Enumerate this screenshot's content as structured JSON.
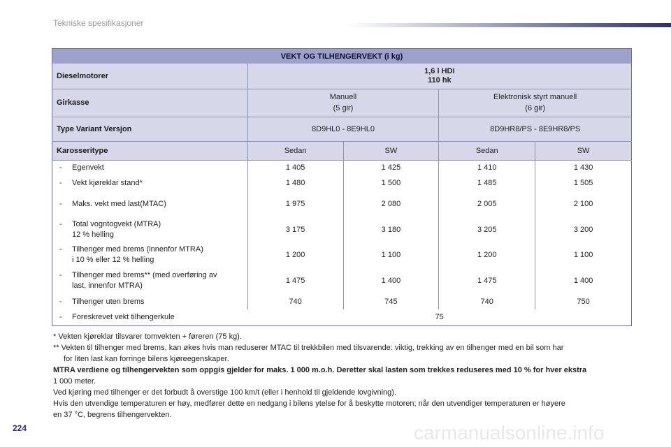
{
  "header": {
    "title": "Tekniske spesifikasjoner"
  },
  "table": {
    "title": "VEKT OG TILHENGERVEKT (i kg)",
    "engine": {
      "label": "Dieselmotorer",
      "line1": "1,6 l HDi",
      "line2": "110 hk"
    },
    "gearbox": {
      "label": "Girkasse",
      "col1_line1": "Manuell",
      "col1_line2": "(5 gir)",
      "col2_line1": "Elektronisk styrt manuell",
      "col2_line2": "(6 gir)"
    },
    "version": {
      "label": "Type Variant Versjon",
      "col1": "8D9HL0 - 8E9HL0",
      "col2": "8D9HR8/PS - 8E9HR8/PS"
    },
    "body": {
      "label": "Karosseritype",
      "cols": [
        "Sedan",
        "SW",
        "Sedan",
        "SW"
      ]
    },
    "rows": [
      {
        "dash": "-",
        "label_line1": "Egenvekt",
        "label_line2": "",
        "values": [
          "1 405",
          "1 425",
          "1 410",
          "1 430"
        ]
      },
      {
        "dash": "-",
        "label_line1": "Vekt kjøreklar stand*",
        "label_line2": "",
        "values": [
          "1 480",
          "1 500",
          "1 485",
          "1 505"
        ]
      },
      {
        "dash": "-",
        "label_line1": "Maks. vekt med last(MTAC)",
        "label_line2": "",
        "values": [
          "1 975",
          "2 080",
          "2 005",
          "2 100"
        ]
      },
      {
        "dash": "-",
        "label_line1": "Total vogntogvekt (MTRA)",
        "label_line2": "12 % helling",
        "values": [
          "3 175",
          "3 180",
          "3 205",
          "3 200"
        ]
      },
      {
        "dash": "-",
        "label_line1": "Tilhenger med brems (innenfor MTRA)",
        "label_line2": "i 10 % eller 12 % helling",
        "values": [
          "1 200",
          "1 100",
          "1 200",
          "1 100"
        ]
      },
      {
        "dash": "-",
        "label_line1": "Tilhenger med brems** (med overføring av",
        "label_line2": "last, innenfor MTRA)",
        "values": [
          "1 475",
          "1 400",
          "1 475",
          "1 400"
        ]
      },
      {
        "dash": "-",
        "label_line1": "Tilhenger uten brems",
        "label_line2": "",
        "values": [
          "740",
          "745",
          "740",
          "750"
        ]
      }
    ],
    "last_row": {
      "dash": "-",
      "label": "Foreskrevet vekt tilhengerkule",
      "value": "75"
    }
  },
  "notes": {
    "note1": "* Vekten kjøreklar tilsvarer tomvekten + føreren (75 kg).",
    "note2_line1": "** Vekten til tilhenger med brems, kan økes hvis man reduserer MTAC til trekkbilen med tilsvarende: viktig, trekking av en tilhenger med en bil som har",
    "note2_line2": "for liten last kan forringe bilens kjøreegenskaper.",
    "bold": "MTRA verdiene og tilhengervekten som oppgis gjelder for maks. 1 000 m.o.h. Deretter skal lasten som trekkes reduseres med 10 % for hver ekstra",
    "line_meter": "1 000 meter.",
    "line_speed": "Ved kjøring med tilhenger er det forbudt å overstige 100 km/t (eller i henhold til gjeldende lovgivning).",
    "line_temp1": "Hvis den utvendige temperaturen er høy, medfører dette en nedgang i bilens ytelse for å beskytte motoren; når den utvendiger temperaturen er høyere",
    "line_temp2": "en 37 °C, begrens tilhengervekten."
  },
  "footer": {
    "page_number": "224",
    "watermark": "carmanualsonline.info"
  }
}
